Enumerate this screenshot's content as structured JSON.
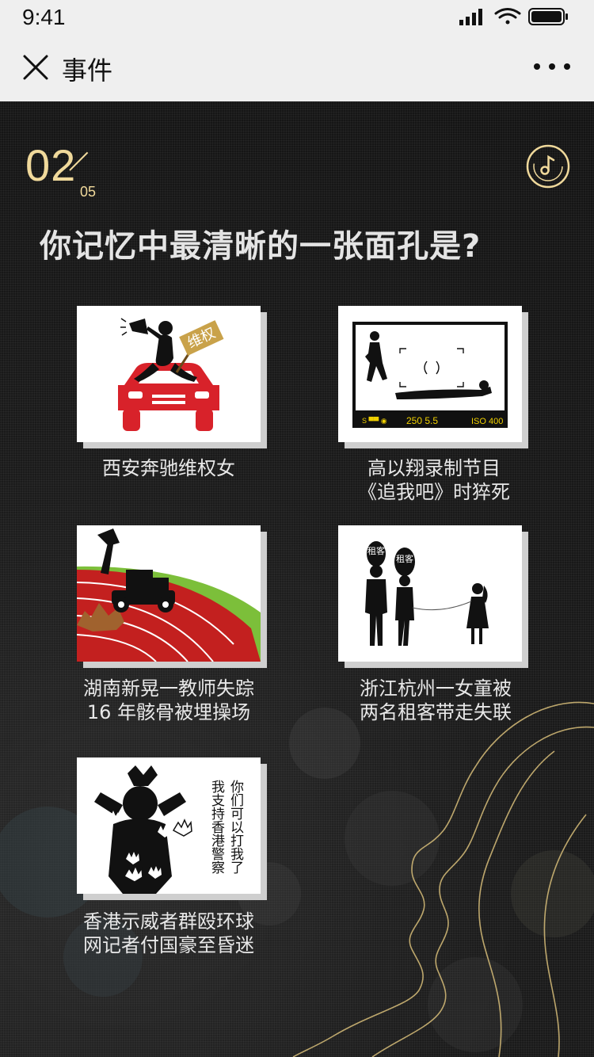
{
  "status": {
    "time": "9:41"
  },
  "nav": {
    "title": "事件"
  },
  "question": {
    "number": "02",
    "total": "05",
    "text": "你记忆中最清晰的一张面孔是?"
  },
  "options": [
    {
      "caption_line1": "西安奔驰维权女",
      "caption_line2": "",
      "sign_text": "维权"
    },
    {
      "caption_line1": "高以翔录制节目",
      "caption_line2": "《追我吧》时猝死",
      "camera_readout": "250 5.5",
      "iso": "ISO 400"
    },
    {
      "caption_line1": "湖南新晃一教师失踪",
      "caption_line2": "16 年骸骨被埋操场"
    },
    {
      "caption_line1": "浙江杭州一女童被",
      "caption_line2": "两名租客带走失联",
      "bubble_text": "租客"
    },
    {
      "caption_line1": "香港示威者群殴环球",
      "caption_line2": "网记者付国豪至昏迷",
      "slogan_line1": "我支持香港警察",
      "slogan_line2": "你们可以打我了"
    }
  ],
  "colors": {
    "accent_gold": "#f0d99b",
    "car_red": "#d8222a",
    "track_red": "#c3201f",
    "grass_green": "#7cbf3a"
  },
  "icons": [
    "close-icon",
    "more-icon",
    "music-icon",
    "signal-icon",
    "wifi-icon",
    "battery-icon"
  ]
}
